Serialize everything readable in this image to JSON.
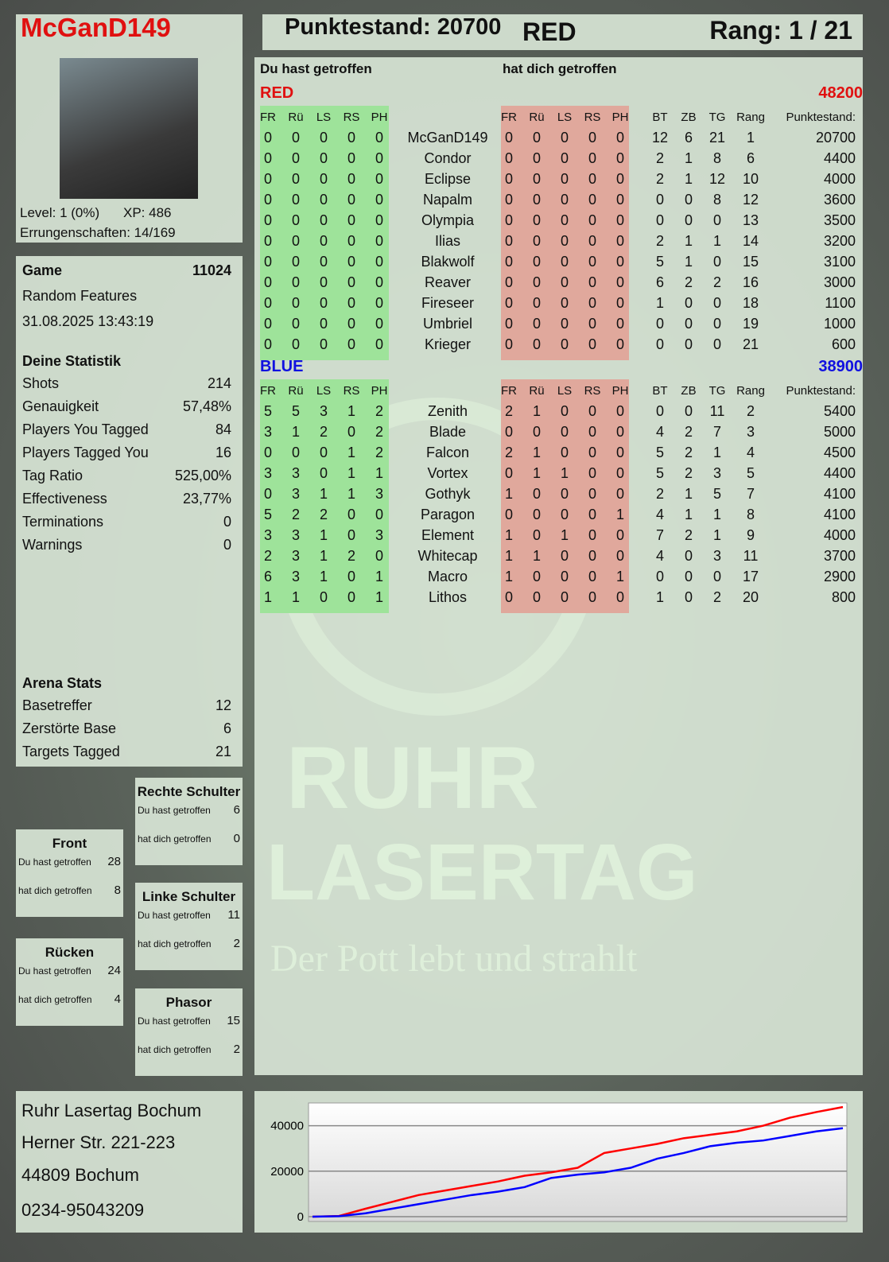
{
  "header": {
    "player": "McGanD149",
    "score_label": "Punktestand: 20700",
    "team": "RED",
    "rank_label": "Rang: 1 / 21"
  },
  "profile": {
    "level": "Level: 1 (0%)",
    "xp": "XP: 486",
    "achievements": "Errungenschaften: 14/169"
  },
  "game": {
    "label": "Game",
    "id": "11024",
    "mode": "Random Features",
    "datetime": "31.08.2025 13:43:19"
  },
  "stats": {
    "title": "Deine Statistik",
    "items": [
      [
        "Shots",
        "214"
      ],
      [
        "Genauigkeit",
        "57,48%"
      ],
      [
        "Players You Tagged",
        "84"
      ],
      [
        "Players Tagged You",
        "16"
      ],
      [
        "Tag Ratio",
        "525,00%"
      ],
      [
        "Effectiveness",
        "23,77%"
      ],
      [
        "Terminations",
        "0"
      ],
      [
        "Warnings",
        "0"
      ]
    ]
  },
  "arena": {
    "title": "Arena Stats",
    "items": [
      [
        "Basetreffer",
        "12"
      ],
      [
        "Zerstörte Base",
        "6"
      ],
      [
        "Targets Tagged",
        "21"
      ]
    ]
  },
  "zones": [
    {
      "title": "Front",
      "hit": "Du hast getroffen",
      "hit_val": "28",
      "got": "hat dich getroffen",
      "got_val": "8"
    },
    {
      "title": "Rücken",
      "hit": "Du hast getroffen",
      "hit_val": "24",
      "got": "hat dich getroffen",
      "got_val": "4"
    },
    {
      "title": "Rechte Schulter",
      "hit": "Du hast getroffen",
      "hit_val": "6",
      "got": "hat dich getroffen",
      "got_val": "0"
    },
    {
      "title": "Linke Schulter",
      "hit": "Du hast getroffen",
      "hit_val": "11",
      "got": "hat dich getroffen",
      "got_val": "2"
    },
    {
      "title": "Phasor",
      "hit": "Du hast getroffen",
      "hit_val": "15",
      "got": "hat dich getroffen",
      "got_val": "2"
    }
  ],
  "address": [
    "Ruhr Lasertag Bochum",
    "Herner Str. 221-223",
    "44809 Bochum",
    "0234-95043209"
  ],
  "table": {
    "you_hit": "Du hast getroffen",
    "hit_you": "hat dich getroffen",
    "hit_cols": [
      "FR",
      "Rü",
      "LS",
      "RS",
      "PH"
    ],
    "stat_cols": [
      "BT",
      "ZB",
      "TG",
      "Rang"
    ],
    "points_col": "Punktestand:",
    "teams": [
      {
        "name": "RED",
        "total": "48200",
        "color": "#e01010",
        "players": [
          [
            "McGanD149",
            [
              0,
              0,
              0,
              0,
              0
            ],
            [
              0,
              0,
              0,
              0,
              0
            ],
            [
              12,
              6,
              21,
              1
            ],
            20700
          ],
          [
            "Condor",
            [
              0,
              0,
              0,
              0,
              0
            ],
            [
              0,
              0,
              0,
              0,
              0
            ],
            [
              2,
              1,
              8,
              6
            ],
            4400
          ],
          [
            "Eclipse",
            [
              0,
              0,
              0,
              0,
              0
            ],
            [
              0,
              0,
              0,
              0,
              0
            ],
            [
              2,
              1,
              12,
              10
            ],
            4000
          ],
          [
            "Napalm",
            [
              0,
              0,
              0,
              0,
              0
            ],
            [
              0,
              0,
              0,
              0,
              0
            ],
            [
              0,
              0,
              8,
              12
            ],
            3600
          ],
          [
            "Olympia",
            [
              0,
              0,
              0,
              0,
              0
            ],
            [
              0,
              0,
              0,
              0,
              0
            ],
            [
              0,
              0,
              0,
              13
            ],
            3500
          ],
          [
            "Ilias",
            [
              0,
              0,
              0,
              0,
              0
            ],
            [
              0,
              0,
              0,
              0,
              0
            ],
            [
              2,
              1,
              1,
              14
            ],
            3200
          ],
          [
            "Blakwolf",
            [
              0,
              0,
              0,
              0,
              0
            ],
            [
              0,
              0,
              0,
              0,
              0
            ],
            [
              5,
              1,
              0,
              15
            ],
            3100
          ],
          [
            "Reaver",
            [
              0,
              0,
              0,
              0,
              0
            ],
            [
              0,
              0,
              0,
              0,
              0
            ],
            [
              6,
              2,
              2,
              16
            ],
            3000
          ],
          [
            "Fireseer",
            [
              0,
              0,
              0,
              0,
              0
            ],
            [
              0,
              0,
              0,
              0,
              0
            ],
            [
              1,
              0,
              0,
              18
            ],
            1100
          ],
          [
            "Umbriel",
            [
              0,
              0,
              0,
              0,
              0
            ],
            [
              0,
              0,
              0,
              0,
              0
            ],
            [
              0,
              0,
              0,
              19
            ],
            1000
          ],
          [
            "Krieger",
            [
              0,
              0,
              0,
              0,
              0
            ],
            [
              0,
              0,
              0,
              0,
              0
            ],
            [
              0,
              0,
              0,
              21
            ],
            600
          ]
        ]
      },
      {
        "name": "BLUE",
        "total": "38900",
        "color": "#1010e0",
        "players": [
          [
            "Zenith",
            [
              5,
              5,
              3,
              1,
              2
            ],
            [
              2,
              1,
              0,
              0,
              0
            ],
            [
              0,
              0,
              11,
              2
            ],
            5400
          ],
          [
            "Blade",
            [
              3,
              1,
              2,
              0,
              2
            ],
            [
              0,
              0,
              0,
              0,
              0
            ],
            [
              4,
              2,
              7,
              3
            ],
            5000
          ],
          [
            "Falcon",
            [
              0,
              0,
              0,
              1,
              2
            ],
            [
              2,
              1,
              0,
              0,
              0
            ],
            [
              5,
              2,
              1,
              4
            ],
            4500
          ],
          [
            "Vortex",
            [
              3,
              3,
              0,
              1,
              1
            ],
            [
              0,
              1,
              1,
              0,
              0
            ],
            [
              5,
              2,
              3,
              5
            ],
            4400
          ],
          [
            "Gothyk",
            [
              0,
              3,
              1,
              1,
              3
            ],
            [
              1,
              0,
              0,
              0,
              0
            ],
            [
              2,
              1,
              5,
              7
            ],
            4100
          ],
          [
            "Paragon",
            [
              5,
              2,
              2,
              0,
              0
            ],
            [
              0,
              0,
              0,
              0,
              1
            ],
            [
              4,
              1,
              1,
              8
            ],
            4100
          ],
          [
            "Element",
            [
              3,
              3,
              1,
              0,
              3
            ],
            [
              1,
              0,
              1,
              0,
              0
            ],
            [
              7,
              2,
              1,
              9
            ],
            4000
          ],
          [
            "Whitecap",
            [
              2,
              3,
              1,
              2,
              0
            ],
            [
              1,
              1,
              0,
              0,
              0
            ],
            [
              4,
              0,
              3,
              11
            ],
            3700
          ],
          [
            "Macro",
            [
              6,
              3,
              1,
              0,
              1
            ],
            [
              1,
              0,
              0,
              0,
              1
            ],
            [
              0,
              0,
              0,
              17
            ],
            2900
          ],
          [
            "Lithos",
            [
              1,
              1,
              0,
              0,
              1
            ],
            [
              0,
              0,
              0,
              0,
              0
            ],
            [
              1,
              0,
              2,
              20
            ],
            800
          ]
        ]
      }
    ]
  },
  "logo": {
    "line1": "RUHR",
    "line2": "LASERTAG",
    "tagline": "Der Pott lebt und strahlt"
  },
  "colors": {
    "hit_green": "#9ee39a",
    "hit_red": "#e0a89c",
    "red": "#e01010",
    "blue": "#1010e0"
  },
  "chart_data": {
    "type": "line",
    "yticks": [
      0,
      20000,
      40000
    ],
    "ylim": [
      0,
      50000
    ],
    "grid": true,
    "series": [
      {
        "color": "#ff0000",
        "values": [
          0,
          300,
          3500,
          6500,
          9500,
          11500,
          13500,
          15500,
          18000,
          19500,
          21500,
          28000,
          30000,
          32000,
          34500,
          36000,
          37500,
          40000,
          43500,
          46000,
          48200
        ]
      },
      {
        "color": "#0000ff",
        "values": [
          0,
          200,
          1500,
          3500,
          5500,
          7500,
          9500,
          11000,
          13000,
          17000,
          18500,
          19500,
          21500,
          25500,
          28000,
          31000,
          32500,
          33500,
          35500,
          37500,
          38900
        ]
      }
    ]
  }
}
